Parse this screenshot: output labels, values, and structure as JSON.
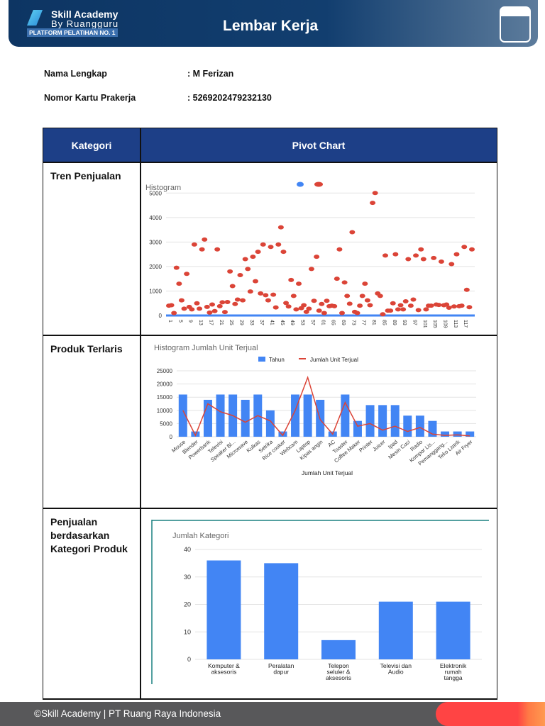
{
  "header": {
    "logo_line1": "Skill Academy",
    "logo_line2": "By Ruangguru",
    "logo_tag": "PLATFORM PELATIHAN NO. 1",
    "title": "Lembar Kerja"
  },
  "info": {
    "name_label": "Nama Lengkap",
    "name_value": ": M Ferizan",
    "card_label": "Nomor Kartu Prakerja",
    "card_value": ": 5269202479232130"
  },
  "table": {
    "col1": "Kategori",
    "col2": "Pivot Chart",
    "rows": [
      {
        "label": "Tren Penjualan"
      },
      {
        "label": "Produk Terlaris"
      },
      {
        "label": "Penjualan berdasarkan Kategori Produk"
      }
    ]
  },
  "footer": {
    "text": "©Skill Academy | PT Ruang Raya Indonesia"
  },
  "colors": {
    "navy": "#1d3f87",
    "bar": "#4285f4",
    "line": "#db4437"
  },
  "chart_data": [
    {
      "type": "scatter",
      "title": "Histogram",
      "ylim": [
        0,
        5500
      ],
      "yticks": [
        0,
        1000,
        2000,
        3000,
        4000,
        5000
      ],
      "xticks": [
        1,
        5,
        9,
        13,
        17,
        21,
        25,
        29,
        33,
        37,
        41,
        45,
        49,
        53,
        57,
        61,
        65,
        69,
        73,
        77,
        81,
        85,
        89,
        93,
        97,
        101,
        105,
        109,
        113,
        117
      ],
      "grid": true,
      "series": [
        {
          "color": "#db4437",
          "values": [
            400,
            420,
            100,
            1950,
            1300,
            620,
            280,
            1700,
            350,
            250,
            2900,
            500,
            280,
            2700,
            3100,
            350,
            120,
            450,
            180,
            2700,
            380,
            540,
            140,
            550,
            1800,
            1200,
            470,
            650,
            1650,
            620,
            2300,
            1900,
            980,
            2400,
            1400,
            2600,
            900,
            2900,
            830,
            620,
            2800,
            850,
            330,
            2900,
            3600,
            2600,
            510,
            370,
            1450,
            800,
            250,
            1300,
            300,
            420,
            150,
            280,
            1900,
            600,
            2400,
            200,
            470,
            100,
            600,
            380,
            400,
            380,
            1500,
            2700,
            100,
            1350,
            800,
            480,
            3400,
            150,
            100,
            400,
            800,
            1300,
            620,
            420,
            4600,
            5000,
            900,
            800,
            50,
            2450,
            200,
            200,
            500,
            2500,
            250,
            420,
            250,
            580,
            2300,
            400,
            650,
            2450,
            220,
            2700,
            2300,
            250,
            400,
            400,
            2350,
            450,
            430,
            2200,
            420,
            450,
            320,
            2100,
            370,
            2500,
            380,
            400,
            2800,
            1050,
            340,
            2700
          ]
        },
        {
          "color": "#4285f4",
          "values": "zero-line"
        }
      ]
    },
    {
      "type": "bar+line",
      "title": "Histogram Jumlah Unit Terjual",
      "xlabel": "Jumlah Unit Terjual",
      "ylim": [
        0,
        25000
      ],
      "yticks": [
        0,
        5000,
        10000,
        15000,
        20000,
        25000
      ],
      "grid": true,
      "legend": "top",
      "categories": [
        "Mouse",
        "Blender",
        "Powerbank",
        "Televisi",
        "Speaker Bl...",
        "Microwave",
        "Kulkas",
        "Setrika",
        "Rice cooker",
        "Webcam",
        "Laptop",
        "Kipas angin",
        "AC",
        "Toaster",
        "Coffee Maker",
        "Printer",
        "Juicer",
        "Ipad",
        "Mesin Cuci",
        "Radio",
        "Kompor Lis...",
        "Pemanggang...",
        "Teko Listrik",
        "Air Fryer"
      ],
      "series": [
        {
          "name": "Tahun",
          "type": "bar",
          "values": [
            16000,
            2000,
            14000,
            16000,
            16000,
            14000,
            16000,
            10000,
            2000,
            16000,
            16000,
            14000,
            2000,
            16000,
            6000,
            12000,
            12000,
            12000,
            8000,
            8000,
            6000,
            2000,
            2000,
            2000
          ]
        },
        {
          "name": "Jumlah Unit Terjual",
          "type": "line",
          "values": [
            10000,
            500,
            12500,
            9500,
            8000,
            5500,
            8000,
            6000,
            500,
            10000,
            22500,
            6500,
            1000,
            13000,
            4000,
            5000,
            2500,
            4000,
            2000,
            3500,
            1000,
            500,
            700,
            300
          ]
        }
      ]
    },
    {
      "type": "bar",
      "title": "Jumlah Kategori",
      "ylim": [
        0,
        40
      ],
      "yticks": [
        0,
        10,
        20,
        30,
        40
      ],
      "grid": true,
      "categories": [
        [
          "Komputer &",
          "aksesoris"
        ],
        [
          "Peralatan",
          "dapur"
        ],
        [
          "Telepon",
          "seluler &",
          "aksesoris"
        ],
        [
          "Televisi dan",
          "Audio"
        ],
        [
          "Elektronik",
          "rumah",
          "tangga"
        ]
      ],
      "values": [
        36,
        35,
        7,
        21,
        21
      ]
    }
  ]
}
